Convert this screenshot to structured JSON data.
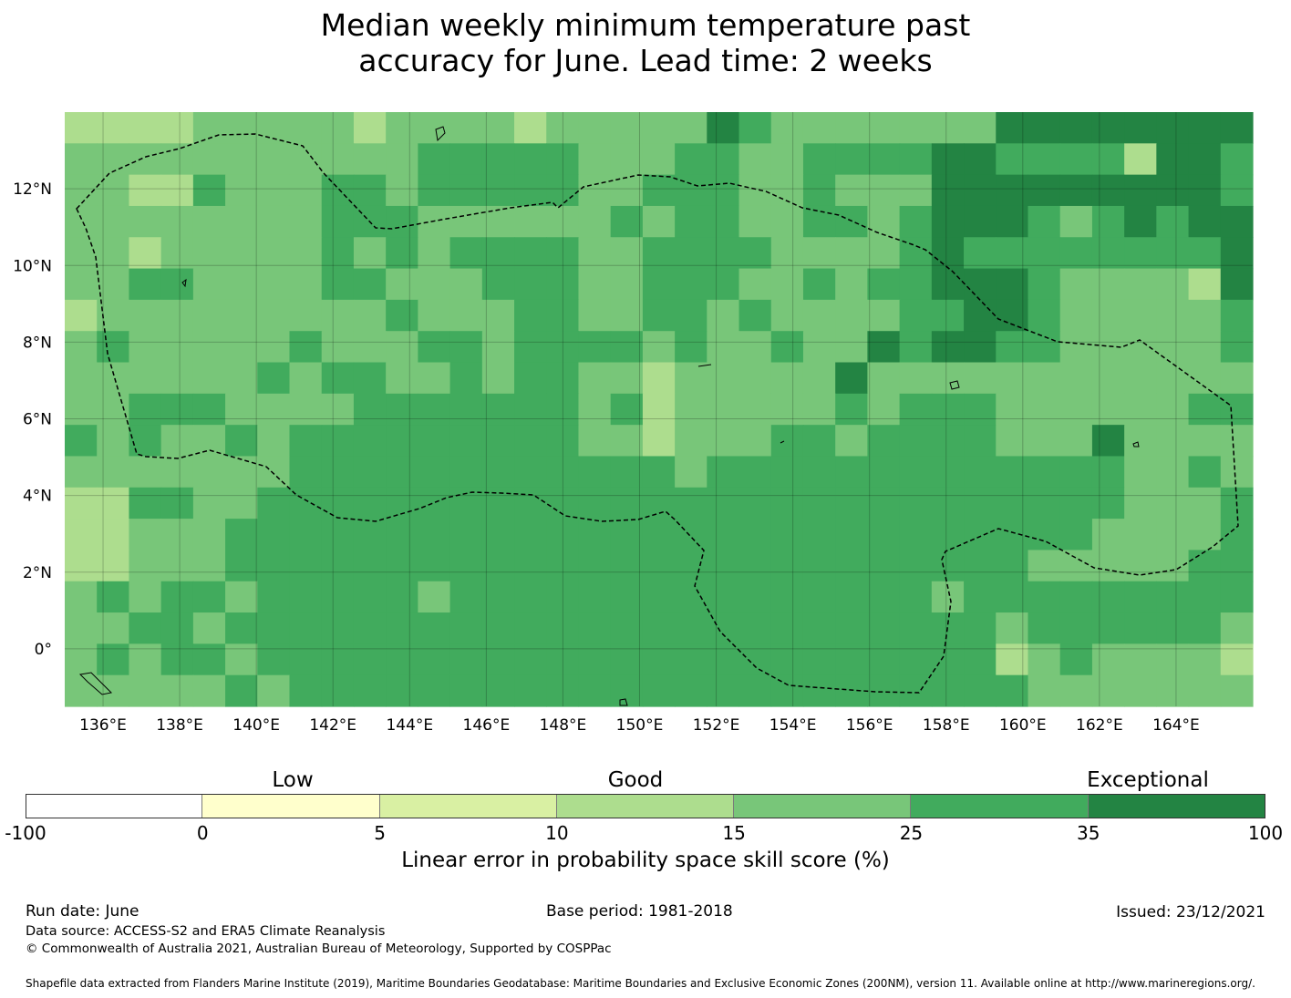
{
  "title_lines": [
    "Median weekly minimum temperature past",
    "accuracy for June. Lead time: 2 weeks"
  ],
  "map": {
    "lon_range": [
      135,
      166
    ],
    "lat_range": [
      -1.5,
      14
    ],
    "x_ticks": [
      "136°E",
      "138°E",
      "140°E",
      "142°E",
      "144°E",
      "146°E",
      "148°E",
      "150°E",
      "152°E",
      "154°E",
      "156°E",
      "158°E",
      "160°E",
      "162°E",
      "164°E"
    ],
    "y_ticks": [
      "12°N",
      "10°N",
      "8°N",
      "6°N",
      "4°N",
      "2°N",
      "0°"
    ],
    "grid": true,
    "region_outline": "dashed EEZ boundary"
  },
  "colorbar": {
    "categories": [
      "Low",
      "Good",
      "Exceptional"
    ],
    "ticks": [
      "-100",
      "0",
      "5",
      "10",
      "15",
      "25",
      "35",
      "100"
    ],
    "colors": [
      "#ffffff",
      "#ffffcc",
      "#d9f0a3",
      "#addd8e",
      "#78c679",
      "#41ab5d",
      "#238443"
    ],
    "label": "Linear error in probability space skill score (%)"
  },
  "footer": {
    "run_date": "Run date: June",
    "base_period": "Base period: 1981-2018",
    "issued": "Issued: 23/12/2021",
    "data_source": "Data source: ACCESS-S2 and ERA5 Climate Reanalysis",
    "copyright": "© Commonwealth of Australia 2021, Australian Bureau of Meteorology, Supported by COSPPac",
    "shapefile": "Shapefile data extracted from Flanders Marine Institute (2019), Maritime Boundaries Geodatabase: Maritime Boundaries and Exclusive Economic Zones (200NM), version 11. Available online at http://www.marineregions.org/."
  }
}
